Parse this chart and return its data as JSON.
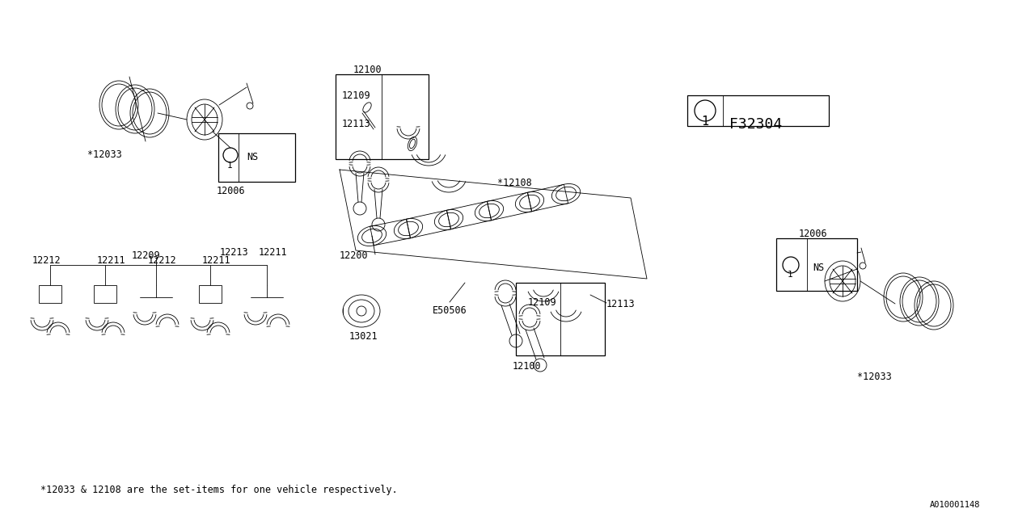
{
  "bg_color": "#ffffff",
  "line_color": "#000000",
  "footer_note": "*12033 & 12108 are the set-items for one vehicle respectively.",
  "diagram_id": "F32304",
  "catalog_id": "A010001148",
  "font_family": "monospace",
  "font_size_label": 8.5,
  "font_size_footer": 8.5,
  "font_size_ref": 11
}
